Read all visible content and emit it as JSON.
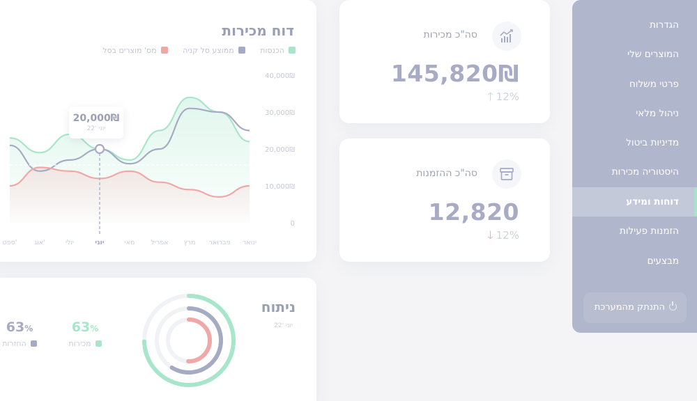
{
  "sidebar": {
    "items": [
      {
        "label": "הגדרות"
      },
      {
        "label": "המוצרים שלי"
      },
      {
        "label": "פרטי משלוח"
      },
      {
        "label": "ניהול מלאי"
      },
      {
        "label": "מדיניות ביטול"
      },
      {
        "label": "היסטוריה מכירות"
      },
      {
        "label": "דוחות ומידע"
      },
      {
        "label": "הזמנות פעילות"
      },
      {
        "label": "מבצעים"
      }
    ],
    "active_index": 6,
    "logout_label": "התנתק מהמערכת"
  },
  "stats": {
    "sales": {
      "title": "סה\"כ מכירות",
      "value": "145,820₪",
      "change": "12%",
      "direction": "up",
      "icon": "bar-chart-icon"
    },
    "orders": {
      "title": "סה\"כ ההזמנות",
      "value": "12,820",
      "change": "12%",
      "direction": "down",
      "icon": "archive-box-icon"
    }
  },
  "sales_report": {
    "title": "דוח מכירות",
    "legend": [
      {
        "label": "הכנסות",
        "color": "#a7e6cb"
      },
      {
        "label": "ממוצע סל קניה",
        "color": "#a6abc4"
      },
      {
        "label": "מס' מוצרים בסל",
        "color": "#f0a7a7"
      }
    ],
    "tooltip": {
      "value": "20,000₪",
      "date": "יוני '22"
    }
  },
  "analysis": {
    "title": "ניתוח",
    "date": "יוני '22",
    "stats": [
      {
        "value": "63",
        "unit": "%",
        "label": "מכירות",
        "color": "#a7e6cb"
      },
      {
        "value": "63",
        "unit": "%",
        "label": "החזרות",
        "color": "#a6abc4"
      }
    ]
  },
  "chart_data": {
    "type": "line",
    "title": "דוח מכירות",
    "categories": [
      "ינואר",
      "פברואר",
      "מרץ",
      "אפריל",
      "מאי",
      "יוני",
      "יולי",
      "אוג'",
      "ספט'"
    ],
    "y_ticks": [
      "0",
      "10,000₪",
      "20,000₪",
      "30,000₪",
      "40,000₪"
    ],
    "ylim": [
      0,
      40000
    ],
    "series": [
      {
        "name": "הכנסות",
        "color": "#a7e6cb",
        "values": [
          22000,
          30000,
          34000,
          25000,
          17000,
          20000,
          24000,
          19000,
          23000
        ]
      },
      {
        "name": "ממוצע סל קניה",
        "color": "#a6abc4",
        "values": [
          25000,
          30000,
          31000,
          20000,
          16000,
          20000,
          17000,
          14000,
          21000
        ]
      },
      {
        "name": "מס' מוצרים בסל",
        "color": "#f0a7a7",
        "values": [
          10000,
          7000,
          9000,
          11000,
          14000,
          12000,
          14000,
          15000,
          10000
        ]
      }
    ],
    "highlight_index": 5,
    "grid": false,
    "legend_position": "top-right"
  }
}
